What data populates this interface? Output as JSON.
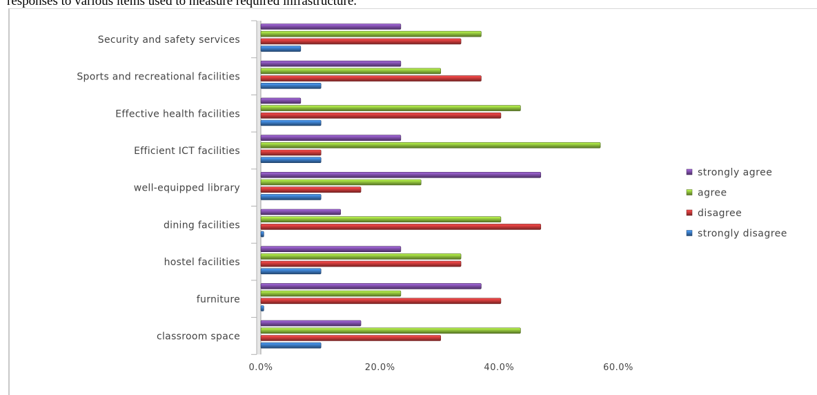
{
  "caption": "responses to various items used to measure required infrastructure.",
  "chart_data": {
    "type": "bar",
    "orientation": "horizontal",
    "categories": [
      "Security and safety services",
      "Sports and recreational facilities",
      "Effective health facilities",
      "Efficient ICT facilities",
      "well-equipped library",
      "dining facilities",
      "hostel facilities",
      "furniture",
      "classroom space"
    ],
    "series": [
      {
        "name": "strongly agree",
        "color": "#7e4fa8",
        "values": [
          23.5,
          23.5,
          6.7,
          23.5,
          47.0,
          13.4,
          23.5,
          37.0,
          16.8
        ]
      },
      {
        "name": "agree",
        "color": "#8fbf3c",
        "values": [
          37.0,
          30.2,
          43.6,
          57.0,
          26.9,
          40.3,
          33.6,
          23.5,
          43.6
        ]
      },
      {
        "name": "disagree",
        "color": "#c83a3a",
        "values": [
          33.6,
          37.0,
          40.3,
          10.1,
          16.8,
          47.0,
          33.6,
          40.3,
          30.2
        ]
      },
      {
        "name": "strongly disagree",
        "color": "#3a78c0",
        "values": [
          6.7,
          10.1,
          10.1,
          10.1,
          10.1,
          0.5,
          10.1,
          0.5,
          10.1
        ]
      }
    ],
    "xaxis_ticks": [
      "0.0%",
      "20.0%",
      "40.0%",
      "60.0%"
    ],
    "xlim": [
      0,
      60
    ],
    "grid": false,
    "legend_position": "right"
  }
}
